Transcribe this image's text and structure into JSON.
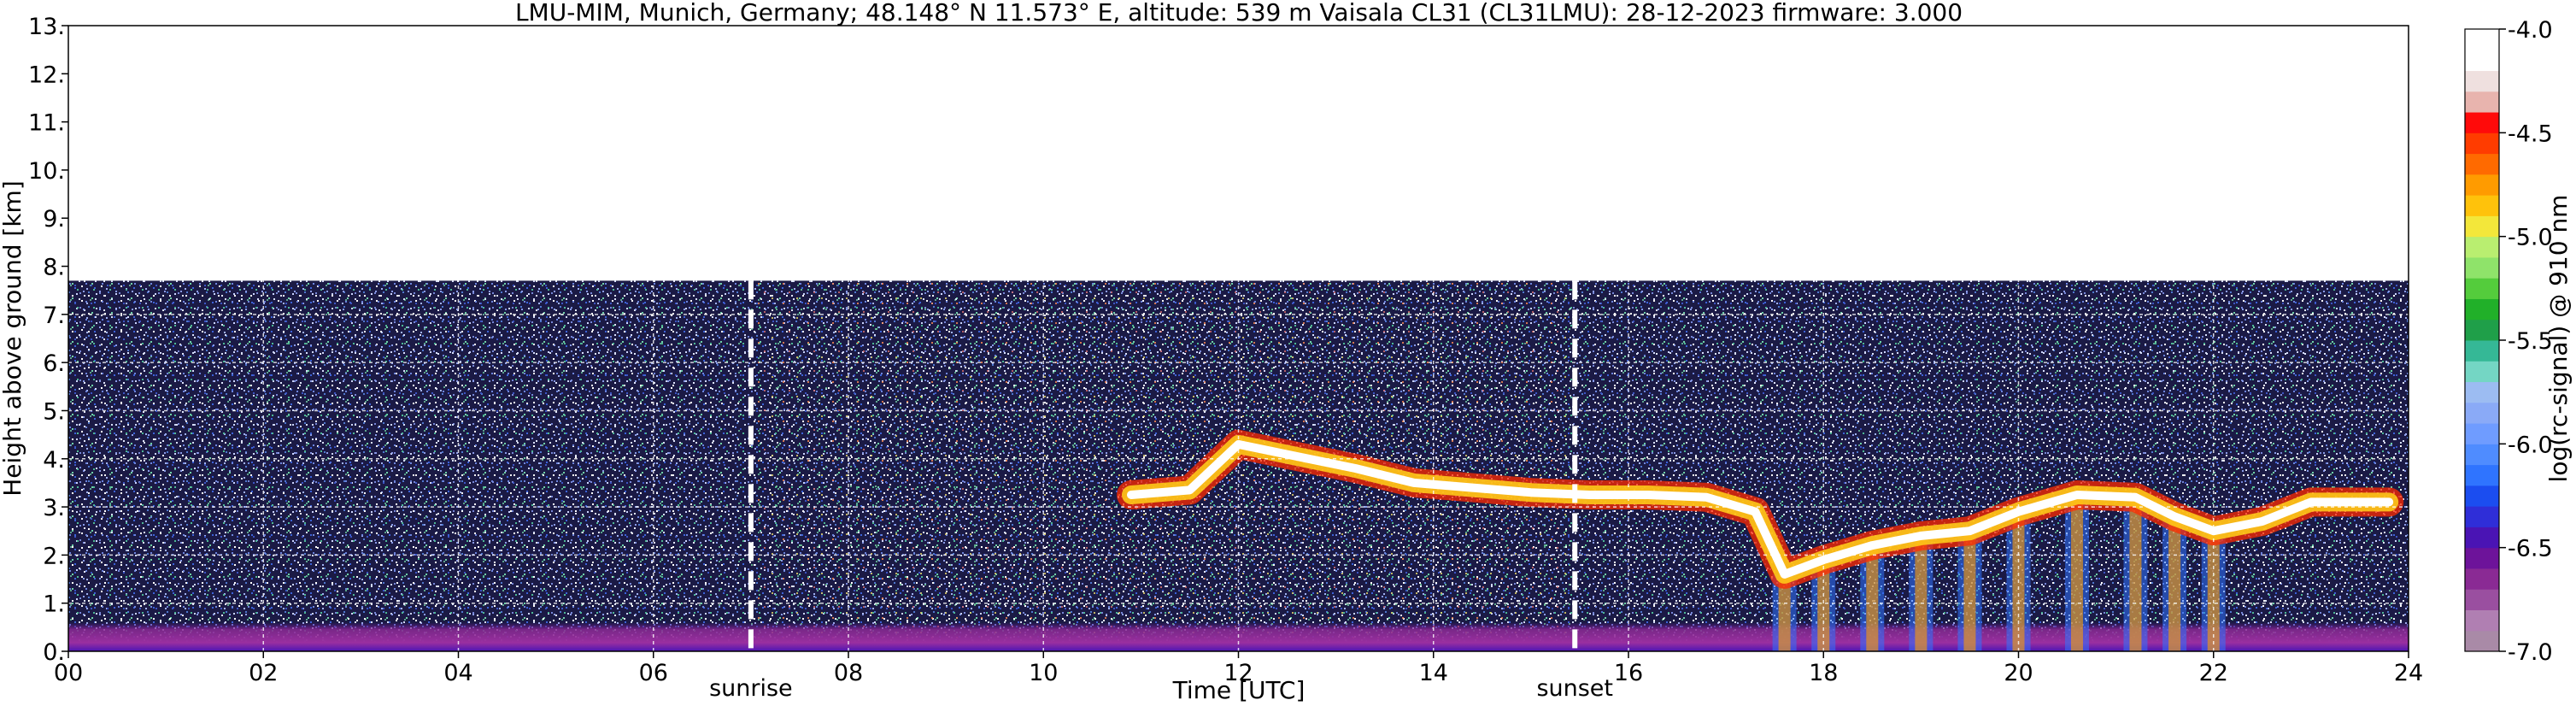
{
  "chart_data": {
    "type": "heatmap",
    "title": "LMU-MIM, Munich, Germany; 48.148° N 11.573° E, altitude: 539 m    Vaisala CL31 (CL31LMU): 28-12-2023    firmware: 3.000",
    "xlabel": "Time [UTC]",
    "ylabel": "Height above ground [km]",
    "xlim": [
      0,
      24
    ],
    "ylim": [
      0,
      13
    ],
    "x_ticks": [
      {
        "value": 0,
        "label": "00"
      },
      {
        "value": 2,
        "label": "02"
      },
      {
        "value": 4,
        "label": "04"
      },
      {
        "value": 6,
        "label": "06"
      },
      {
        "value": 8,
        "label": "08"
      },
      {
        "value": 10,
        "label": "10"
      },
      {
        "value": 12,
        "label": "12"
      },
      {
        "value": 14,
        "label": "14"
      },
      {
        "value": 16,
        "label": "16"
      },
      {
        "value": 18,
        "label": "18"
      },
      {
        "value": 20,
        "label": "20"
      },
      {
        "value": 22,
        "label": "22"
      },
      {
        "value": 24,
        "label": "24"
      }
    ],
    "y_ticks": [
      {
        "value": 0,
        "label": "0."
      },
      {
        "value": 1,
        "label": "1."
      },
      {
        "value": 2,
        "label": "2."
      },
      {
        "value": 3,
        "label": "3."
      },
      {
        "value": 4,
        "label": "4."
      },
      {
        "value": 5,
        "label": "5."
      },
      {
        "value": 6,
        "label": "6."
      },
      {
        "value": 7,
        "label": "7."
      },
      {
        "value": 8,
        "label": "8."
      },
      {
        "value": 9,
        "label": "9."
      },
      {
        "value": 10,
        "label": "10."
      },
      {
        "value": 11,
        "label": "11."
      },
      {
        "value": 12,
        "label": "12."
      },
      {
        "value": 13,
        "label": "13."
      }
    ],
    "grid": true,
    "data_top_km": 7.7,
    "markers": [
      {
        "label": "sunrise",
        "time": 7.0
      },
      {
        "label": "sunset",
        "time": 15.45
      }
    ],
    "colorbar": {
      "label": "log(rc-signal) @ 910 nm",
      "range": [
        -7.0,
        -4.0
      ],
      "ticks": [
        {
          "value": -4.0,
          "label": "-4.0"
        },
        {
          "value": -4.5,
          "label": "-4.5"
        },
        {
          "value": -5.0,
          "label": "-5.0"
        },
        {
          "value": -5.5,
          "label": "-5.5"
        },
        {
          "value": -6.0,
          "label": "-6.0"
        },
        {
          "value": -6.5,
          "label": "-6.5"
        },
        {
          "value": -7.0,
          "label": "-7.0"
        }
      ],
      "colors_bottom_to_top": [
        "#a98aa7",
        "#b07fb2",
        "#9a4fa0",
        "#8a2a94",
        "#6d139a",
        "#4a14b4",
        "#2f2ed8",
        "#1b4df0",
        "#2f74ff",
        "#4f8cff",
        "#6f9cff",
        "#8aaaf7",
        "#9cbcf2",
        "#74d6c4",
        "#35b896",
        "#1f9f49",
        "#21b029",
        "#54cc3c",
        "#8fe36a",
        "#b9ee70",
        "#f3e73a",
        "#ffc20b",
        "#ff9b00",
        "#ff6a00",
        "#ff3c00",
        "#ff0a0a",
        "#e8b4ae",
        "#efe0df",
        "#ffffff",
        "#ffffff"
      ]
    },
    "cloud_layer": [
      {
        "time": 10.9,
        "height": 3.25
      },
      {
        "time": 11.5,
        "height": 3.35
      },
      {
        "time": 12.0,
        "height": 4.3
      },
      {
        "time": 12.6,
        "height": 4.05
      },
      {
        "time": 13.2,
        "height": 3.8
      },
      {
        "time": 13.8,
        "height": 3.5
      },
      {
        "time": 14.4,
        "height": 3.4
      },
      {
        "time": 15.0,
        "height": 3.3
      },
      {
        "time": 15.6,
        "height": 3.25
      },
      {
        "time": 16.2,
        "height": 3.25
      },
      {
        "time": 16.8,
        "height": 3.2
      },
      {
        "time": 17.3,
        "height": 2.9
      },
      {
        "time": 17.6,
        "height": 1.6
      },
      {
        "time": 18.0,
        "height": 1.9
      },
      {
        "time": 18.5,
        "height": 2.2
      },
      {
        "time": 19.0,
        "height": 2.4
      },
      {
        "time": 19.5,
        "height": 2.5
      },
      {
        "time": 20.0,
        "height": 2.9
      },
      {
        "time": 20.6,
        "height": 3.25
      },
      {
        "time": 21.2,
        "height": 3.2
      },
      {
        "time": 21.6,
        "height": 2.8
      },
      {
        "time": 22.0,
        "height": 2.5
      },
      {
        "time": 22.5,
        "height": 2.7
      },
      {
        "time": 23.0,
        "height": 3.1
      },
      {
        "time": 23.8,
        "height": 3.1
      }
    ]
  }
}
